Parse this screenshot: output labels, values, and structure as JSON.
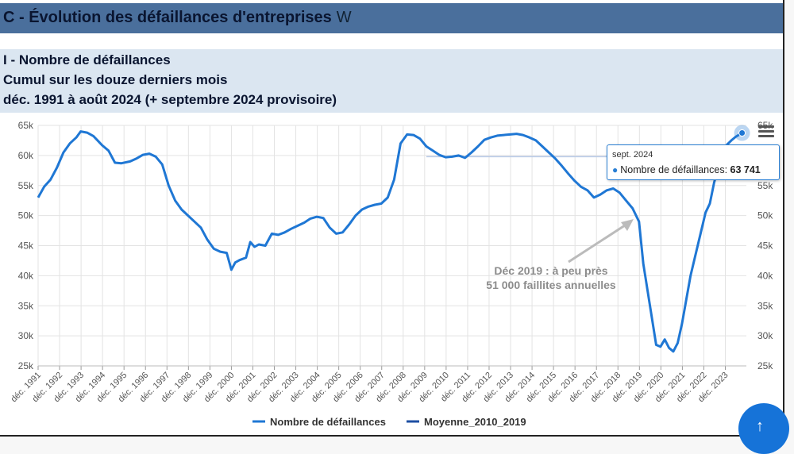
{
  "header": {
    "title": "C - Évolution des défaillances d'entreprises",
    "title_icon": "W"
  },
  "subtitle": {
    "line1": "I - Nombre de défaillances",
    "line2": "Cumul sur les douze derniers mois",
    "line3": "déc. 1991 à août 2024 (+ septembre 2024 provisoire)"
  },
  "tooltip": {
    "date": "sept. 2024",
    "series_label": "Nombre de défaillances:",
    "value_text": "63 741"
  },
  "annotation": {
    "line1": "Déc 2019 : à peu près",
    "line2": "51 000 faillites annuelles"
  },
  "legend": {
    "series1": "Nombre de défaillances",
    "series2": "Moyenne_2010_2019"
  },
  "colors": {
    "series1": "#1f77d4",
    "series2": "#1e4fa3",
    "arrow": "#bbbbbb"
  },
  "chart_data": {
    "type": "line",
    "ylim": [
      25000,
      65000
    ],
    "yticks": [
      "25k",
      "30k",
      "35k",
      "40k",
      "45k",
      "50k",
      "55k",
      "60k",
      "65k"
    ],
    "xticks": [
      "déc. 1991",
      "déc. 1992",
      "déc. 1993",
      "déc. 1994",
      "déc. 1995",
      "déc. 1996",
      "déc. 1997",
      "déc. 1998",
      "déc. 1999",
      "déc. 2000",
      "déc. 2001",
      "déc. 2002",
      "déc. 2003",
      "déc. 2004",
      "déc. 2005",
      "déc. 2006",
      "déc. 2007",
      "déc. 2008",
      "déc. 2009",
      "déc. 2010",
      "déc. 2011",
      "déc. 2012",
      "déc. 2013",
      "déc. 2014",
      "déc. 2015",
      "déc. 2016",
      "déc. 2017",
      "déc. 2018",
      "déc. 2019",
      "déc. 2020",
      "déc. 2021",
      "déc. 2022",
      "déc. 2023"
    ],
    "series": [
      {
        "name": "Nombre de défaillances",
        "x": [
          1991.92,
          1992.2,
          1992.5,
          1992.8,
          1993.1,
          1993.4,
          1993.7,
          1993.9,
          1994.2,
          1994.5,
          1994.9,
          1995.2,
          1995.5,
          1995.8,
          1996.2,
          1996.5,
          1996.8,
          1997.1,
          1997.4,
          1997.7,
          1998.0,
          1998.3,
          1998.6,
          1998.9,
          1999.2,
          1999.5,
          1999.8,
          2000.1,
          2000.4,
          2000.7,
          2000.92,
          2001.1,
          2001.3,
          2001.6,
          2001.8,
          2002.0,
          2002.2,
          2002.5,
          2002.8,
          2003.1,
          2003.4,
          2003.7,
          2004.0,
          2004.3,
          2004.6,
          2004.9,
          2005.2,
          2005.5,
          2005.8,
          2006.1,
          2006.4,
          2006.7,
          2007.0,
          2007.3,
          2007.6,
          2007.9,
          2008.2,
          2008.5,
          2008.8,
          2009.1,
          2009.4,
          2009.7,
          2010.0,
          2010.3,
          2010.6,
          2010.9,
          2011.2,
          2011.5,
          2011.8,
          2012.1,
          2012.4,
          2012.7,
          2013.0,
          2013.3,
          2013.6,
          2013.9,
          2014.2,
          2014.5,
          2014.8,
          2015.1,
          2015.4,
          2015.7,
          2016.0,
          2016.3,
          2016.6,
          2016.9,
          2017.2,
          2017.5,
          2017.8,
          2018.1,
          2018.4,
          2018.7,
          2019.0,
          2019.3,
          2019.6,
          2019.9,
          2020.1,
          2020.3,
          2020.5,
          2020.7,
          2020.9,
          2021.1,
          2021.3,
          2021.5,
          2021.7,
          2021.9,
          2022.1,
          2022.3,
          2022.5,
          2022.8,
          2023.0,
          2023.2,
          2023.4,
          2023.6,
          2023.8,
          2024.0,
          2024.2,
          2024.4,
          2024.7
        ],
        "values": [
          53000,
          54800,
          56000,
          58000,
          60500,
          62000,
          63000,
          64000,
          63800,
          63200,
          61700,
          60800,
          58800,
          58700,
          59000,
          59500,
          60100,
          60300,
          59800,
          58500,
          55000,
          52500,
          51000,
          50000,
          49000,
          48000,
          46000,
          44500,
          44000,
          43800,
          41000,
          42200,
          42600,
          43000,
          45600,
          44800,
          45200,
          45000,
          47000,
          46800,
          47200,
          47800,
          48300,
          48800,
          49500,
          49800,
          49600,
          48000,
          47000,
          47200,
          48500,
          50000,
          51000,
          51500,
          51800,
          52000,
          53000,
          56000,
          62000,
          63500,
          63400,
          62800,
          61500,
          60800,
          60100,
          59700,
          59800,
          60000,
          59600,
          60500,
          61500,
          62600,
          63000,
          63300,
          63400,
          63500,
          63600,
          63400,
          63000,
          62500,
          61500,
          60500,
          59500,
          58300,
          57000,
          55800,
          54800,
          54200,
          53000,
          53500,
          54200,
          54500,
          53800,
          52500,
          51200,
          49000,
          42000,
          37500,
          33000,
          28500,
          28200,
          29400,
          28000,
          27400,
          28800,
          32000,
          36000,
          40000,
          43000,
          47500,
          50500,
          52000,
          55500,
          58000,
          60500,
          61800,
          62500,
          63100,
          63741
        ]
      },
      {
        "name": "Moyenne_2010_2019",
        "x": [
          2010.0,
          2019.9
        ],
        "values": [
          59800,
          59800
        ]
      }
    ]
  }
}
